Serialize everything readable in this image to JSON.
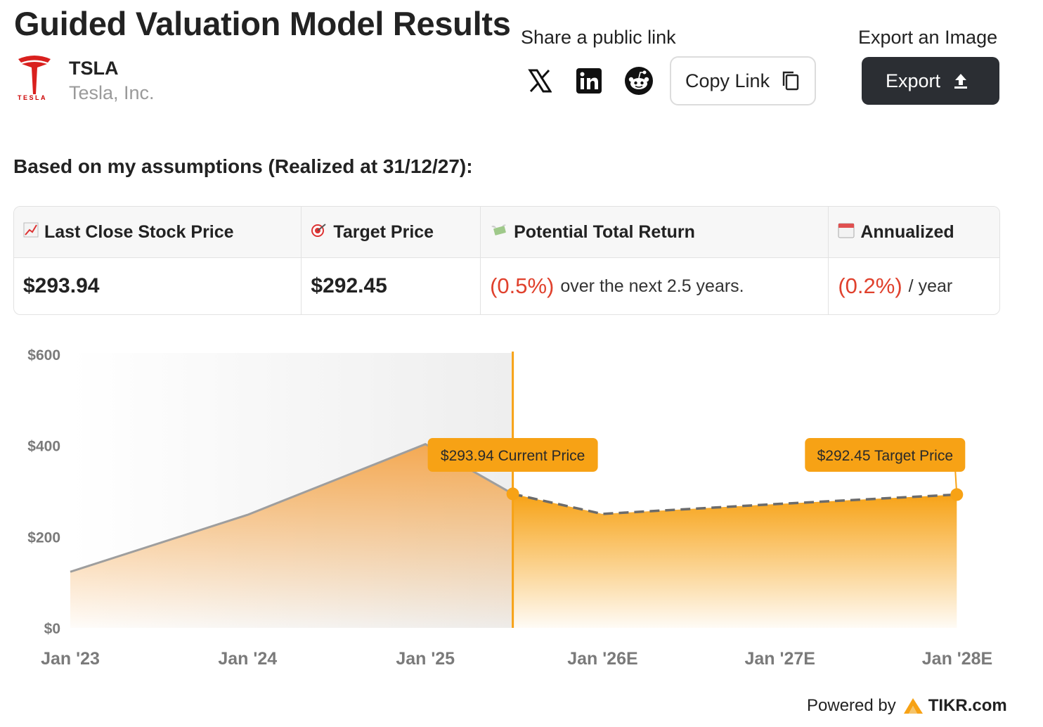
{
  "header": {
    "title": "Guided Valuation Model Results",
    "ticker": "TSLA",
    "company_name": "Tesla, Inc.",
    "logo_word": "TESLA"
  },
  "share": {
    "label": "Share a public link",
    "icons": [
      "x-icon",
      "linkedin-icon",
      "reddit-icon"
    ],
    "copy_link": "Copy Link"
  },
  "export": {
    "label": "Export an Image",
    "button": "Export"
  },
  "assumptions": "Based on my assumptions (Realized at 31/12/27):",
  "summary": {
    "headers": {
      "last_close": "Last Close Stock Price",
      "target": "Target Price",
      "return": "Potential Total Return",
      "annualized": "Annualized"
    },
    "values": {
      "last_close": "$293.94",
      "target": "$292.45",
      "return_pct": "(0.5%)",
      "return_tail": "over the next 2.5 years.",
      "annualized_pct": "(0.2%)",
      "annualized_tail": "/ year"
    }
  },
  "colors": {
    "accent": "#f7a215",
    "negative": "#e0412d",
    "history_line": "#9e9e9e",
    "forecast_dash": "#6b6b6b",
    "dark_button": "#2b2e33"
  },
  "chart_data": {
    "type": "area",
    "ylim": [
      0,
      600
    ],
    "yticks": [
      "$0",
      "$200",
      "$400",
      "$600"
    ],
    "xticks": [
      "Jan '23",
      "Jan '24",
      "Jan '25",
      "Jan '26E",
      "Jan '27E",
      "Jan '28E"
    ],
    "series": [
      {
        "kind": "historical",
        "points": [
          {
            "x": "2023-01-01",
            "y": 123
          },
          {
            "x": "2024-01-01",
            "y": 248
          },
          {
            "x": "2025-01-01",
            "y": 403
          },
          {
            "x": "2025-06-30",
            "y": 293.94
          }
        ]
      },
      {
        "kind": "forecast",
        "points": [
          {
            "x": "2025-06-30",
            "y": 293.94
          },
          {
            "x": "2025-12-31",
            "y": 250
          },
          {
            "x": "2026-12-31",
            "y": 272
          },
          {
            "x": "2027-12-31",
            "y": 292.45
          }
        ]
      }
    ],
    "annotations": [
      {
        "label": "$293.94 Current Price",
        "x": "2025-06-30",
        "y": 293.94
      },
      {
        "label": "$292.45 Target Price",
        "x": "2027-12-31",
        "y": 292.45
      }
    ]
  },
  "footer": {
    "powered_by": "Powered by",
    "brand": "TIKR.com"
  }
}
